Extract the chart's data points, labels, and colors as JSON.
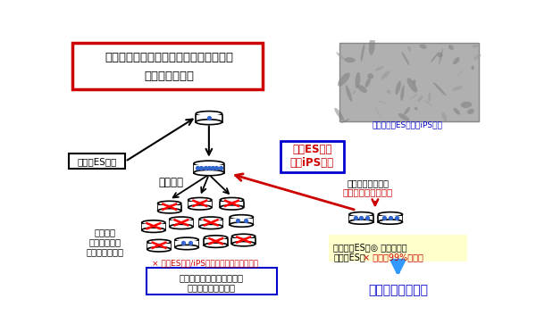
{
  "title_line1": "ヒト多能性幹細胞の培養の大きな問題：",
  "title_line2": "高頻度の細胞死",
  "mouse_es_label": "マウスES細胞",
  "human_es_label_line1": "ヒトES細胞",
  "human_es_label_line2": "ヒトiPS細胞",
  "photo_caption": "未分化ヒトES細胞・iPS細胞",
  "disperse_label": "分散培養",
  "inefficient_line1": "非効率的な少数の",
  "inefficient_line2": "「株分け」植え継ぎ",
  "efficient_line1": "効率的な",
  "efficient_line2": "分散培養での",
  "efficient_line3": "大量の植え継ぎ",
  "death_note": "× ヒトES細胞/iPS細胞の分散による細胞死",
  "box_bottom_line1": "細胞分散での遺伝子導入や",
  "box_bottom_line2": "分化誘導なども困難",
  "mouse_es_note_line1": "【マウスES】◎ 分散に強い",
  "mouse_es_note_line2a": "【ヒトES】",
  "mouse_es_note_line2b": "× 分散で99%細胞死",
  "conclusion": "原因は不明だった",
  "bg_color": "#ffffff",
  "title_border_color": "#cc0000",
  "red_color": "#cc0000",
  "blue_color": "#0000cc",
  "black_color": "#000000",
  "light_yellow": "#ffffcc"
}
